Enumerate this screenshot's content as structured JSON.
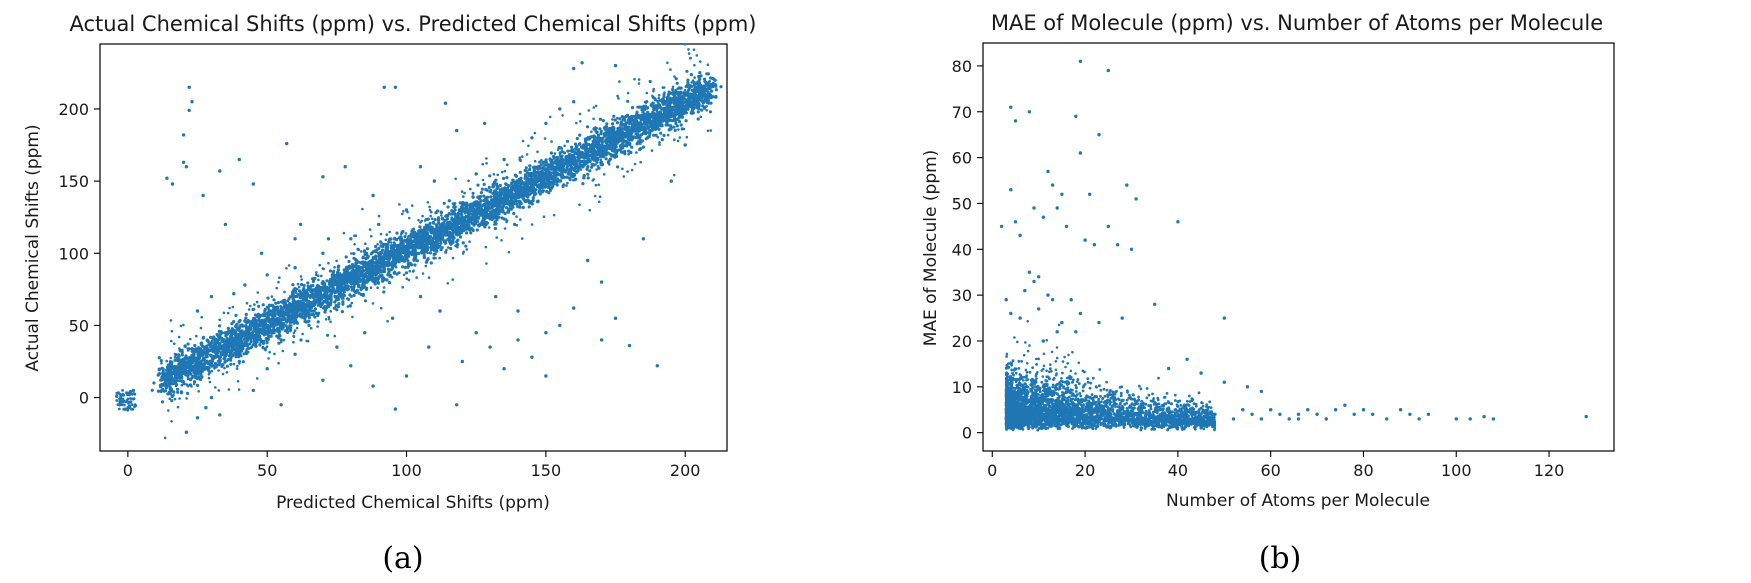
{
  "colors": {
    "marker": "#1f77b4"
  },
  "chart_data": [
    {
      "type": "scatter",
      "title": "Actual Chemical Shifts (ppm) vs. Predicted Chemical Shifts (ppm)",
      "xlabel": "Predicted Chemical Shifts (ppm)",
      "ylabel": "Actual Chemical Shifts (ppm)",
      "caption": "(a)",
      "xlim": [
        -10,
        215
      ],
      "ylim": [
        -37,
        245
      ],
      "xticks": [
        0,
        50,
        100,
        150,
        200
      ],
      "yticks": [
        0,
        50,
        100,
        150,
        200
      ],
      "xtick_labels": [
        "0",
        "50",
        "100",
        "150",
        "200"
      ],
      "ytick_labels": [
        "0",
        "50",
        "100",
        "150",
        "200"
      ],
      "grid": false,
      "legend": "none",
      "series": [
        {
          "main_trend": {
            "x_start": 12,
            "y_start": 12,
            "x_end": 210,
            "y_end": 215,
            "density": "very dense"
          },
          "points": [
            [
              -3,
              -5
            ],
            [
              -2,
              -2
            ],
            [
              -1,
              -8
            ],
            [
              0,
              3
            ],
            [
              -4,
              1
            ],
            [
              1,
              -3
            ],
            [
              2,
              5
            ],
            [
              22,
              215
            ],
            [
              23,
              205
            ],
            [
              22,
              199
            ],
            [
              20,
              182
            ],
            [
              20,
              163
            ],
            [
              21,
              160
            ],
            [
              14,
              152
            ],
            [
              16,
              148
            ],
            [
              27,
              140
            ],
            [
              92,
              215
            ],
            [
              96,
              215
            ],
            [
              57,
              176
            ],
            [
              70,
              153
            ],
            [
              78,
              160
            ],
            [
              33,
              157
            ],
            [
              40,
              165
            ],
            [
              45,
              148
            ],
            [
              35,
              120
            ],
            [
              62,
              120
            ],
            [
              72,
              110
            ],
            [
              118,
              185
            ],
            [
              114,
              204
            ],
            [
              163,
              232
            ],
            [
              160,
              228
            ],
            [
              175,
              230
            ],
            [
              180,
              190
            ],
            [
              96,
              -8
            ],
            [
              55,
              -5
            ],
            [
              88,
              8
            ],
            [
              118,
              -5
            ],
            [
              108,
              35
            ],
            [
              120,
              25
            ],
            [
              130,
              35
            ],
            [
              140,
              40
            ],
            [
              145,
              28
            ],
            [
              150,
              45
            ],
            [
              155,
              50
            ],
            [
              160,
              62
            ],
            [
              170,
              40
            ],
            [
              175,
              55
            ],
            [
              190,
              22
            ],
            [
              135,
              20
            ],
            [
              125,
              45
            ],
            [
              112,
              60
            ],
            [
              100,
              15
            ],
            [
              80,
              22
            ],
            [
              70,
              12
            ],
            [
              150,
              15
            ],
            [
              180,
              36
            ],
            [
              40,
              38
            ],
            [
              60,
              30
            ],
            [
              45,
              5
            ],
            [
              30,
              0
            ],
            [
              33,
              -12
            ],
            [
              28,
              -7
            ],
            [
              21,
              -24
            ],
            [
              25,
              -14
            ],
            [
              140,
              60
            ],
            [
              132,
              70
            ],
            [
              165,
              95
            ],
            [
              170,
              80
            ],
            [
              185,
              110
            ],
            [
              195,
              150
            ],
            [
              200,
              175
            ],
            [
              105,
              70
            ],
            [
              95,
              55
            ],
            [
              85,
              45
            ],
            [
              75,
              35
            ],
            [
              65,
              50
            ],
            [
              55,
              40
            ],
            [
              50,
              20
            ],
            [
              40,
              25
            ],
            [
              110,
              150
            ],
            [
              100,
              130
            ],
            [
              90,
              120
            ],
            [
              80,
              110
            ],
            [
              70,
              100
            ],
            [
              60,
              90
            ],
            [
              50,
              85
            ],
            [
              42,
              78
            ],
            [
              38,
              72
            ],
            [
              125,
              155
            ],
            [
              135,
              165
            ],
            [
              145,
              180
            ],
            [
              150,
              190
            ],
            [
              155,
              200
            ],
            [
              160,
              205
            ],
            [
              128,
              190
            ],
            [
              105,
              160
            ],
            [
              88,
              140
            ],
            [
              60,
              110
            ],
            [
              48,
              100
            ],
            [
              30,
              70
            ],
            [
              25,
              60
            ]
          ]
        }
      ]
    },
    {
      "type": "scatter",
      "title": "MAE of Molecule (ppm) vs. Number of Atoms per Molecule",
      "xlabel": "Number of Atoms per Molecule",
      "ylabel": "MAE of Molecule (ppm)",
      "caption": "(b)",
      "xlim": [
        -2,
        134
      ],
      "ylim": [
        -4,
        85
      ],
      "xticks": [
        0,
        20,
        40,
        60,
        80,
        100,
        120
      ],
      "yticks": [
        0,
        10,
        20,
        30,
        40,
        50,
        60,
        70,
        80
      ],
      "xtick_labels": [
        "0",
        "20",
        "40",
        "60",
        "80",
        "100",
        "120"
      ],
      "ytick_labels": [
        "0",
        "10",
        "20",
        "30",
        "40",
        "50",
        "60",
        "70",
        "80"
      ],
      "grid": false,
      "legend": "none",
      "series": [
        {
          "cluster": {
            "x_min": 3,
            "x_max": 60,
            "y_low": 0.5,
            "y_high": 12,
            "density": "dense near small x"
          },
          "points": [
            [
              19,
              81
            ],
            [
              25,
              79
            ],
            [
              4,
              71
            ],
            [
              5,
              68
            ],
            [
              8,
              70
            ],
            [
              18,
              69
            ],
            [
              19,
              61
            ],
            [
              23,
              65
            ],
            [
              12,
              57
            ],
            [
              13,
              54
            ],
            [
              15,
              52
            ],
            [
              21,
              52
            ],
            [
              29,
              54
            ],
            [
              31,
              51
            ],
            [
              4,
              53
            ],
            [
              9,
              49
            ],
            [
              14,
              49
            ],
            [
              2,
              45
            ],
            [
              5,
              46
            ],
            [
              6,
              43
            ],
            [
              11,
              47
            ],
            [
              16,
              45
            ],
            [
              25,
              45
            ],
            [
              40,
              46
            ],
            [
              20,
              42
            ],
            [
              22,
              41
            ],
            [
              27,
              41
            ],
            [
              30,
              40
            ],
            [
              8,
              35
            ],
            [
              9,
              33
            ],
            [
              10,
              34
            ],
            [
              7,
              31
            ],
            [
              12,
              30
            ],
            [
              13,
              29
            ],
            [
              17,
              29
            ],
            [
              3,
              29
            ],
            [
              35,
              28
            ],
            [
              50,
              25
            ],
            [
              4,
              26
            ],
            [
              6,
              25
            ],
            [
              10,
              27
            ],
            [
              15,
              24
            ],
            [
              19,
              26
            ],
            [
              23,
              24
            ],
            [
              28,
              25
            ],
            [
              14,
              22
            ],
            [
              18,
              22
            ],
            [
              11,
              20
            ],
            [
              42,
              16
            ],
            [
              38,
              14
            ],
            [
              45,
              13
            ],
            [
              50,
              11
            ],
            [
              55,
              10
            ],
            [
              58,
              9
            ],
            [
              60,
              5
            ],
            [
              62,
              4
            ],
            [
              64,
              3
            ],
            [
              66,
              4
            ],
            [
              68,
              5
            ],
            [
              70,
              4
            ],
            [
              72,
              3
            ],
            [
              74,
              5
            ],
            [
              76,
              6
            ],
            [
              78,
              4
            ],
            [
              80,
              5
            ],
            [
              82,
              4
            ],
            [
              85,
              3
            ],
            [
              88,
              5
            ],
            [
              90,
              4
            ],
            [
              92,
              3
            ],
            [
              94,
              4
            ],
            [
              100,
              3
            ],
            [
              103,
              3
            ],
            [
              106,
              3.5
            ],
            [
              108,
              3
            ],
            [
              128,
              3.5
            ],
            [
              56,
              4
            ],
            [
              58,
              3
            ],
            [
              52,
              3
            ],
            [
              48,
              4
            ],
            [
              54,
              5
            ],
            [
              66,
              3
            ]
          ]
        }
      ]
    }
  ]
}
